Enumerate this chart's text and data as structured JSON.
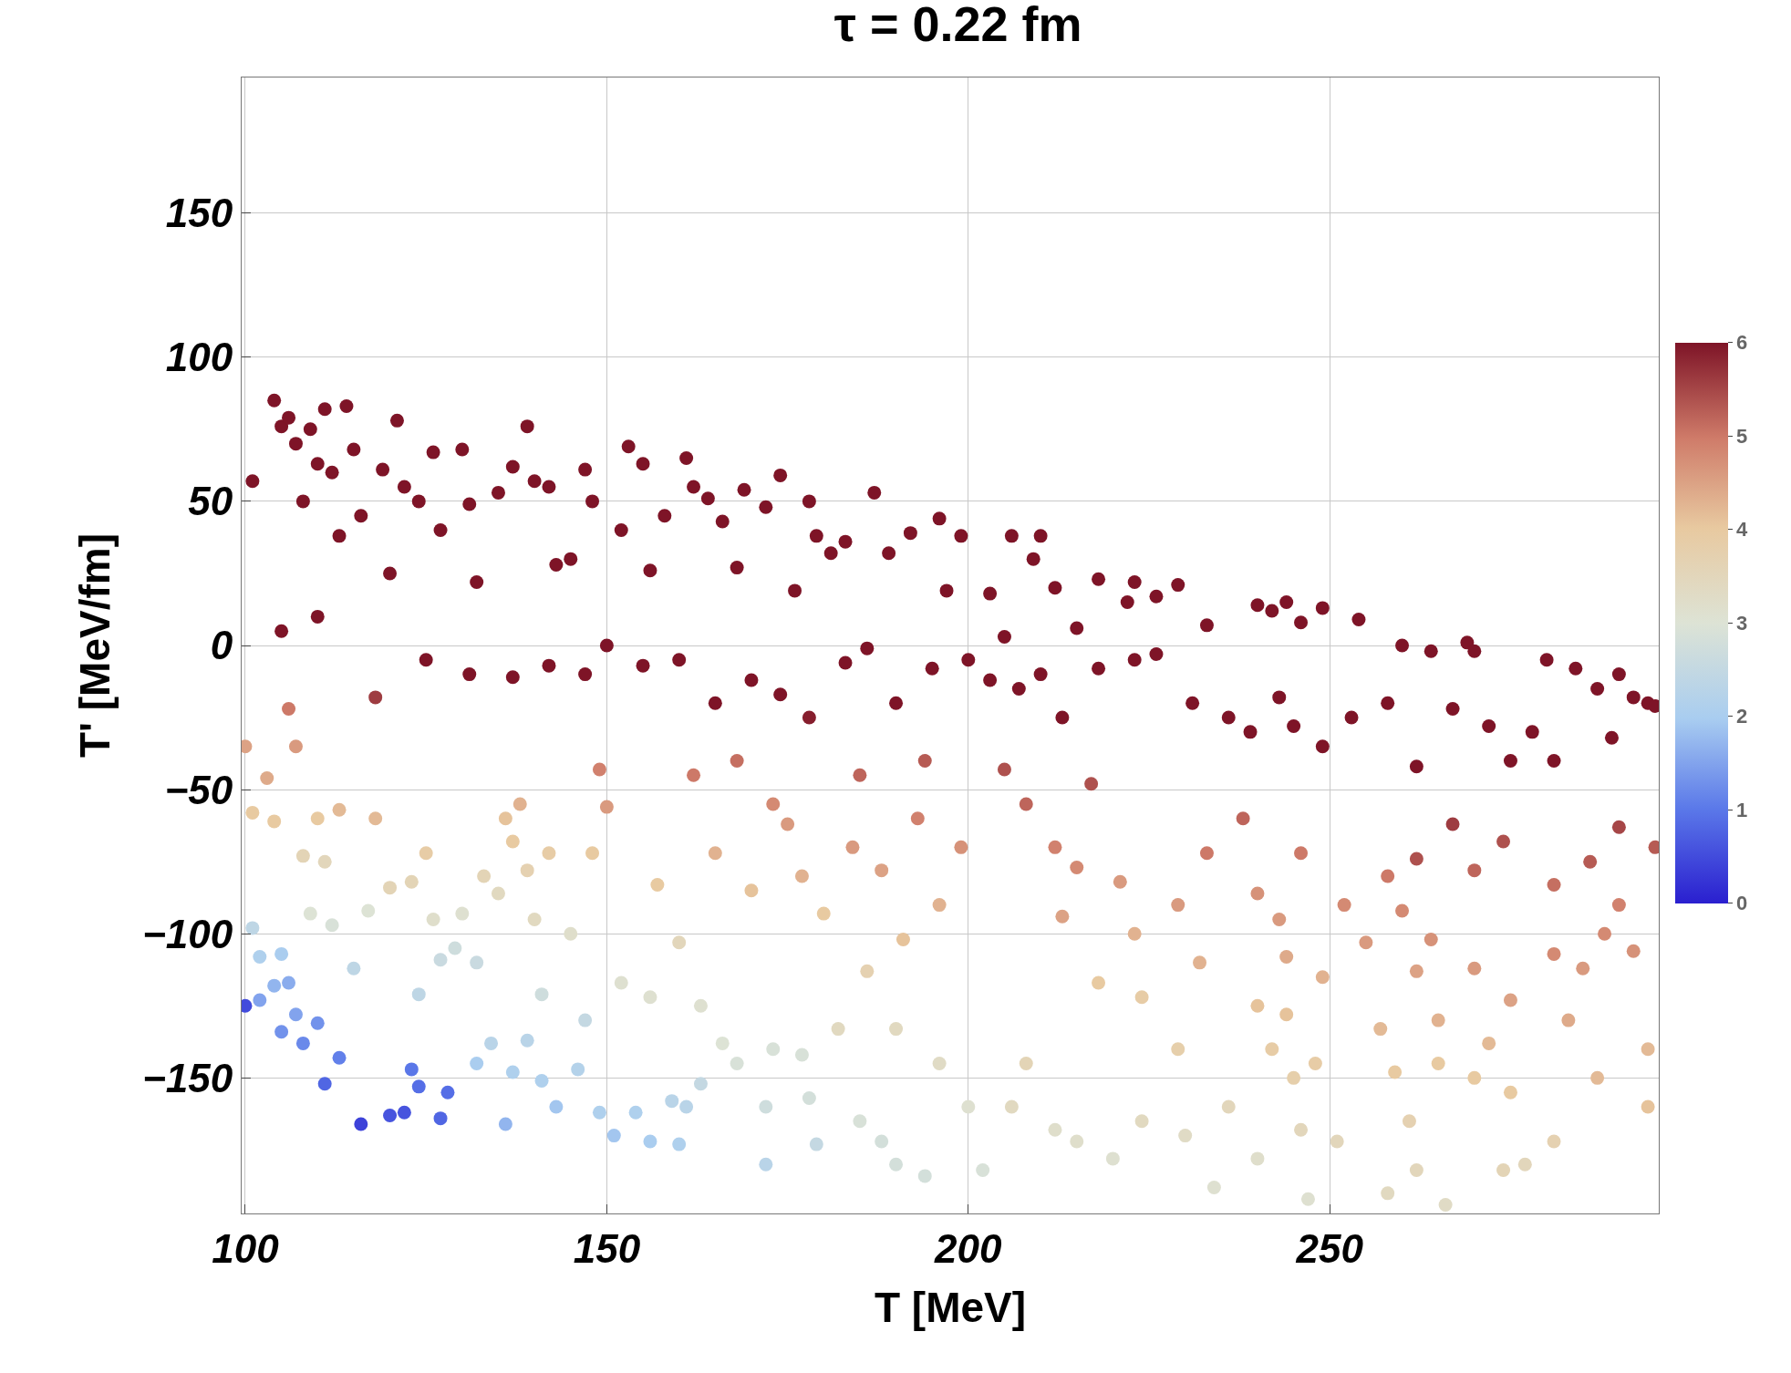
{
  "chart_data": {
    "type": "scatter",
    "title": "τ = 0.22 fm",
    "xlabel": "T [MeV]",
    "ylabel": "T' [MeV/fm]",
    "x": [
      101,
      104,
      105,
      106,
      107,
      108,
      109,
      110,
      111,
      112,
      113,
      114,
      115,
      116,
      119,
      120,
      121,
      122,
      124,
      126,
      127,
      130,
      131,
      132,
      135,
      137,
      139,
      140,
      142,
      143,
      145,
      147,
      148,
      152,
      153,
      155,
      156,
      158,
      161,
      162,
      164,
      166,
      168,
      169,
      172,
      174,
      176,
      178,
      179,
      181,
      183,
      187,
      189,
      192,
      196,
      197,
      199,
      203,
      205,
      206,
      209,
      210,
      212,
      215,
      218,
      222,
      223,
      226,
      229,
      233,
      240,
      242,
      244,
      246,
      249,
      254,
      260,
      264,
      269,
      270,
      278,
      280,
      284,
      287,
      290,
      292,
      294,
      295,
      105,
      110,
      118,
      125,
      131,
      137,
      142,
      147,
      150,
      155,
      160,
      165,
      170,
      174,
      178,
      183,
      186,
      190,
      195,
      200,
      203,
      207,
      210,
      213,
      218,
      223,
      226,
      231,
      236,
      239,
      243,
      245,
      249,
      253,
      258,
      262,
      267,
      272,
      275,
      281,
      289,
      100,
      101,
      103,
      104,
      106,
      107,
      108,
      109,
      110,
      111,
      112,
      113,
      115,
      117,
      101,
      102,
      104,
      105,
      106,
      107,
      108,
      110,
      111,
      113,
      100,
      116,
      120,
      122,
      123,
      124,
      127,
      128,
      102,
      105,
      118,
      120,
      123,
      125,
      126,
      124,
      127,
      129,
      130,
      132,
      133,
      135,
      136,
      137,
      138,
      139,
      140,
      142,
      134,
      137,
      139,
      141,
      136,
      143,
      146,
      132,
      141,
      145,
      147,
      148,
      149,
      150,
      149,
      151,
      154,
      156,
      160,
      159,
      161,
      163,
      152,
      156,
      157,
      160,
      163,
      166,
      168,
      172,
      173,
      177,
      178,
      179,
      172,
      185,
      188,
      190,
      194,
      200,
      202,
      196,
      190,
      182,
      186,
      180,
      177,
      175,
      170,
      165,
      162,
      168,
      173,
      184,
      188,
      193,
      196,
      199,
      191,
      185,
      194,
      205,
      208,
      212,
      213,
      215,
      217,
      218,
      221,
      223,
      224,
      208,
      212,
      215,
      220,
      206,
      224,
      229,
      230,
      234,
      236,
      240,
      242,
      245,
      246,
      247,
      248,
      251,
      229,
      233,
      238,
      240,
      243,
      244,
      246,
      232,
      240,
      249,
      244,
      252,
      255,
      258,
      260,
      262,
      264,
      257,
      259,
      261,
      265,
      265,
      270,
      272,
      275,
      277,
      281,
      283,
      285,
      288,
      290,
      292,
      294,
      295,
      290,
      286,
      281,
      274,
      270,
      267,
      262,
      275,
      270,
      258,
      262,
      266,
      274,
      287,
      294,
      281
    ],
    "values": [
      57,
      85,
      76,
      79,
      70,
      50,
      75,
      63,
      82,
      60,
      38,
      83,
      68,
      45,
      61,
      25,
      78,
      55,
      50,
      67,
      40,
      68,
      49,
      22,
      53,
      62,
      76,
      57,
      55,
      28,
      30,
      61,
      50,
      40,
      69,
      63,
      26,
      45,
      65,
      55,
      51,
      43,
      27,
      54,
      48,
      59,
      19,
      50,
      38,
      32,
      36,
      53,
      32,
      39,
      44,
      19,
      38,
      18,
      3,
      38,
      30,
      38,
      20,
      6,
      23,
      15,
      22,
      17,
      21,
      7,
      14,
      12,
      15,
      8,
      13,
      9,
      0,
      -2,
      1,
      -2,
      -30,
      -5,
      -8,
      -15,
      -10,
      -18,
      -20,
      -21,
      5,
      10,
      -18,
      -5,
      -10,
      -11,
      -7,
      -10,
      0,
      -7,
      -5,
      -20,
      -12,
      -17,
      -25,
      -6,
      -1,
      -20,
      -8,
      -5,
      -12,
      -15,
      -10,
      -25,
      -8,
      -5,
      -3,
      -20,
      -25,
      -30,
      -18,
      -28,
      -35,
      -25,
      -20,
      -42,
      -22,
      -28,
      -40,
      -40,
      -32,
      -35,
      -58,
      -46,
      -61,
      -22,
      -35,
      -73,
      -93,
      -60,
      -75,
      -97,
      -57,
      -112,
      -92,
      -98,
      -108,
      -118,
      -134,
      -117,
      -128,
      -138,
      -131,
      -152,
      -143,
      -125,
      -166,
      -163,
      -162,
      -147,
      -153,
      -164,
      -155,
      -123,
      -107,
      -60,
      -84,
      -82,
      -72,
      -95,
      -121,
      -109,
      -105,
      -93,
      -110,
      -80,
      -86,
      -60,
      -68,
      -55,
      -78,
      -95,
      -72,
      -138,
      -148,
      -137,
      -151,
      -166,
      -160,
      -147,
      -145,
      -121,
      -100,
      -130,
      -72,
      -43,
      -56,
      -162,
      -170,
      -162,
      -172,
      -173,
      -158,
      -160,
      -152,
      -117,
      -122,
      -83,
      -103,
      -125,
      -138,
      -145,
      -160,
      -140,
      -142,
      -157,
      -173,
      -180,
      -165,
      -172,
      -180,
      -184,
      -160,
      -182,
      -145,
      -133,
      -133,
      -113,
      -93,
      -80,
      -62,
      -85,
      -72,
      -45,
      -40,
      -55,
      -70,
      -78,
      -60,
      -90,
      -70,
      -102,
      -45,
      -40,
      -43,
      -55,
      -70,
      -94,
      -77,
      -48,
      -117,
      -82,
      -100,
      -122,
      -145,
      -168,
      -172,
      -178,
      -160,
      -165,
      -140,
      -170,
      -188,
      -160,
      -178,
      -140,
      -150,
      -168,
      -192,
      -145,
      -172,
      -90,
      -72,
      -60,
      -86,
      -95,
      -108,
      -72,
      -110,
      -125,
      -115,
      -128,
      -90,
      -103,
      -80,
      -92,
      -113,
      -102,
      -133,
      -148,
      -165,
      -145,
      -130,
      -150,
      -138,
      -155,
      -180,
      -172,
      -130,
      -112,
      -100,
      -90,
      -106,
      -140,
      -70,
      -63,
      -75,
      -83,
      -68,
      -78,
      -62,
      -74,
      -123,
      -112,
      -190,
      -182,
      -194,
      -182,
      -150,
      -160,
      -107
    ],
    "cvalues": [
      6,
      6,
      6,
      6,
      6,
      6,
      6,
      6,
      6,
      6,
      6,
      6,
      6,
      6,
      6,
      6,
      6,
      6,
      6,
      6,
      6,
      6,
      6,
      6,
      6,
      6,
      6,
      6,
      6,
      6,
      6,
      6,
      6,
      6,
      6,
      6,
      6,
      6,
      6,
      6,
      6,
      6,
      6,
      6,
      6,
      6,
      6,
      6,
      6,
      6,
      6,
      6,
      6,
      6,
      6,
      6,
      6,
      6,
      6,
      6,
      6,
      6,
      6,
      6,
      6,
      6,
      6,
      6,
      6,
      6,
      6,
      6,
      6,
      6,
      6,
      6,
      6,
      6,
      6,
      6,
      6,
      6,
      6,
      6,
      6,
      6,
      6,
      6,
      6,
      6,
      5.6,
      6,
      6,
      6,
      6,
      6,
      6,
      6,
      6,
      6,
      6,
      6,
      5.9,
      6,
      6,
      6,
      6,
      6,
      6,
      6,
      6,
      6,
      6,
      6,
      6,
      6,
      6,
      6,
      6,
      6,
      6,
      6,
      6,
      6,
      6,
      6,
      6,
      6,
      6,
      4.5,
      4.0,
      4.4,
      4.0,
      5.0,
      4.6,
      3.6,
      3.0,
      4.0,
      3.5,
      2.9,
      4.2,
      2.4,
      3.0,
      2.4,
      2.1,
      1.7,
      1.3,
      1.6,
      1.5,
      1.2,
      1.3,
      0.8,
      1.1,
      0.5,
      0.4,
      0.6,
      0.6,
      1.0,
      0.9,
      0.8,
      0.9,
      1.5,
      2.0,
      4.2,
      3.6,
      3.6,
      3.9,
      3.2,
      2.4,
      2.6,
      2.7,
      3.1,
      2.6,
      3.6,
      3.4,
      4.1,
      4.0,
      4.3,
      3.7,
      3.4,
      3.9,
      2.3,
      2.1,
      2.3,
      2.1,
      1.7,
      1.9,
      2.2,
      2.0,
      2.7,
      3.2,
      2.5,
      4.0,
      4.9,
      4.6,
      2.1,
      1.9,
      2.1,
      2.0,
      2.1,
      2.3,
      2.3,
      2.5,
      3.1,
      3.1,
      4.0,
      3.5,
      3.1,
      3.0,
      2.9,
      2.7,
      2.9,
      2.9,
      2.8,
      2.5,
      2.3,
      2.9,
      2.8,
      2.8,
      2.8,
      3.1,
      2.9,
      3.3,
      3.4,
      3.4,
      3.7,
      4.0,
      4.3,
      4.6,
      4.1,
      4.3,
      5.0,
      5.1,
      4.8,
      4.6,
      4.5,
      4.9,
      4.3,
      4.7,
      4.1,
      5.2,
      5.3,
      5.4,
      5.2,
      4.9,
      4.5,
      4.8,
      5.4,
      4.0,
      4.6,
      4.3,
      3.9,
      3.6,
      3.2,
      3.2,
      3.1,
      3.4,
      3.4,
      3.8,
      3.3,
      3.1,
      3.5,
      3.2,
      3.9,
      3.8,
      3.5,
      3.1,
      3.9,
      3.5,
      4.6,
      5.0,
      5.2,
      4.7,
      4.6,
      4.4,
      5.0,
      4.3,
      4.1,
      4.3,
      4.1,
      4.8,
      4.6,
      5.0,
      4.8,
      4.5,
      4.7,
      4.2,
      4.0,
      3.7,
      4.0,
      4.3,
      4.0,
      4.2,
      4.0,
      3.5,
      3.7,
      4.4,
      4.6,
      4.8,
      4.9,
      4.7,
      4.2,
      5.3,
      5.5,
      5.3,
      5.1,
      5.4,
      5.2,
      5.6,
      5.4,
      4.5,
      4.6,
      3.4,
      3.5,
      3.3,
      3.6,
      4.2,
      4.1,
      4.8
    ],
    "clim": [
      0,
      6
    ],
    "cticks": [
      0,
      1,
      2,
      3,
      4,
      5,
      6
    ],
    "xlim": [
      99.5,
      295.5
    ],
    "xticks": [
      100,
      150,
      200,
      250
    ],
    "ylim": [
      -197,
      197
    ],
    "yticks": [
      -150,
      -100,
      -50,
      0,
      50,
      100,
      150
    ],
    "grid": true,
    "marker": "circle"
  }
}
